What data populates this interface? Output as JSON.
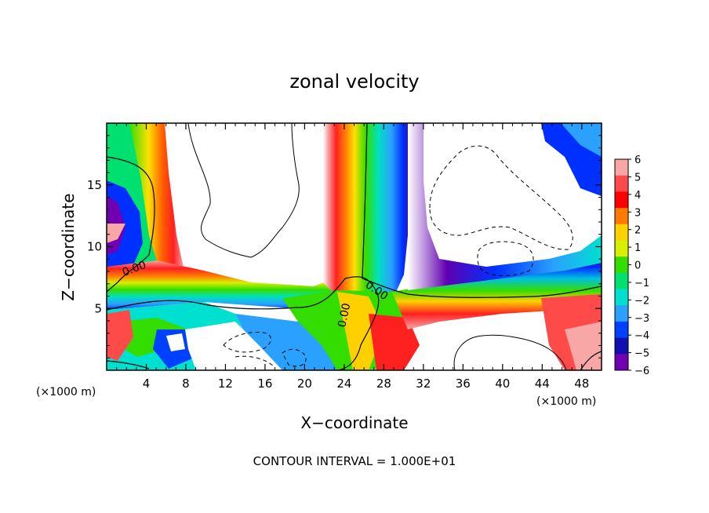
{
  "chart_data": {
    "type": "heatmap",
    "title": "zonal velocity",
    "xlabel": "X−coordinate",
    "ylabel": "Z−coordinate",
    "x_unit": "(×1000 m)",
    "z_unit": "(×1000 m)",
    "xlim": [
      0,
      50
    ],
    "ylim": [
      0,
      20
    ],
    "x_ticks": [
      4,
      8,
      12,
      16,
      20,
      24,
      28,
      32,
      36,
      40,
      44,
      48
    ],
    "x_tick_labels": [
      "4",
      "8",
      "12",
      "16",
      "20",
      "24",
      "28",
      "32",
      "36",
      "40",
      "44",
      "48"
    ],
    "y_ticks": [
      5,
      10,
      15
    ],
    "y_tick_labels": [
      "5",
      "10",
      "15"
    ],
    "colorbar": {
      "ticks": [
        6,
        5,
        4,
        3,
        2,
        1,
        0,
        -1,
        -2,
        -3,
        -4,
        -5,
        -6
      ],
      "labels": [
        "6",
        "5",
        "4",
        "3",
        "2",
        "1",
        "0",
        "−1",
        "−2",
        "−3",
        "−4",
        "−5",
        "−6"
      ],
      "colors": [
        "#f8a6a6",
        "#ff4a4a",
        "#ff0000",
        "#ff7a00",
        "#ffd000",
        "#d8f000",
        "#33dd00",
        "#00e070",
        "#00e0d0",
        "#2aa0ff",
        "#0040ff",
        "#1010b0",
        "#7000b0"
      ]
    },
    "contour_labels": [
      "0.00",
      "0.00",
      "0.00"
    ],
    "contour_interval": "CONTOUR INTERVAL = 1.000E+01",
    "grid": false
  }
}
